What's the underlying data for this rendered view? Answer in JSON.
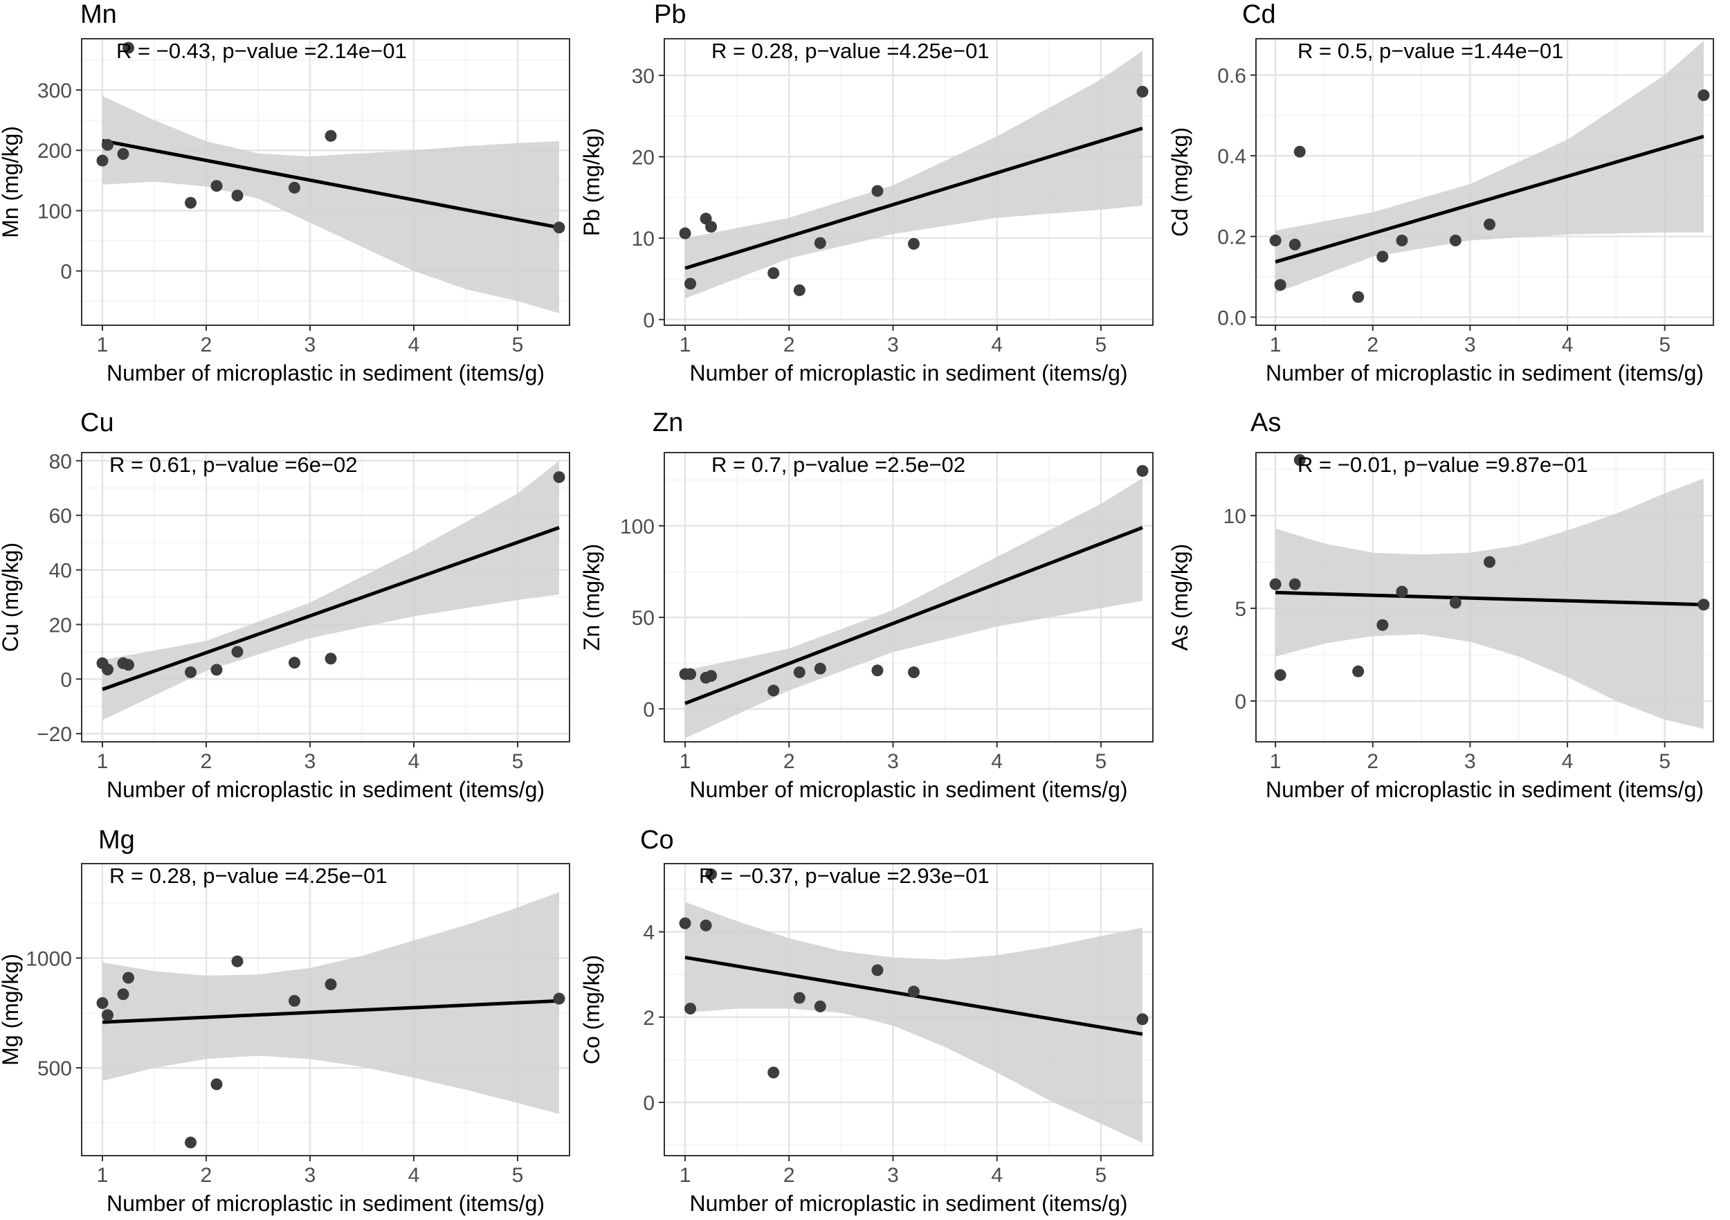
{
  "figure": {
    "x_axis_label": "Number of microplastic in sediment (items/g)"
  },
  "colors": {
    "band": "#d0d0d0",
    "grid_major": "#e4e4e4",
    "grid_minor": "#f2f2f2",
    "line": "#000000",
    "point_light": "#3d3d3d",
    "point_dark": "#0a0a0a",
    "frame": "#333333"
  },
  "chart_data": [
    {
      "type": "scatter",
      "title": "Mn",
      "ylabel": "Mn (mg/kg)",
      "xlabel": "Number of microplastic in sediment (items/g)",
      "annotation": "R = −0.43, p−value =2.14e−01",
      "xlim": [
        0.8,
        5.5
      ],
      "ylim": [
        -90,
        385
      ],
      "xticks": [
        1,
        2,
        3,
        4,
        5
      ],
      "yticks": [
        0,
        100,
        200,
        300
      ],
      "ytick_labels": [
        "0",
        "100",
        "200",
        "300"
      ],
      "grid": true,
      "points": [
        [
          1.0,
          183
        ],
        [
          1.05,
          209
        ],
        [
          1.2,
          194
        ],
        [
          1.25,
          370
        ],
        [
          1.85,
          113
        ],
        [
          2.1,
          141
        ],
        [
          2.3,
          125
        ],
        [
          2.85,
          138
        ],
        [
          3.2,
          224
        ],
        [
          5.4,
          72
        ]
      ],
      "fit": [
        [
          1.0,
          216
        ],
        [
          5.4,
          72
        ]
      ],
      "band_upper": [
        [
          1.0,
          290
        ],
        [
          1.5,
          250
        ],
        [
          2.0,
          215
        ],
        [
          2.5,
          195
        ],
        [
          3.0,
          190
        ],
        [
          3.5,
          195
        ],
        [
          4.0,
          200
        ],
        [
          4.5,
          207
        ],
        [
          5.0,
          212
        ],
        [
          5.4,
          215
        ]
      ],
      "band_lower": [
        [
          1.0,
          143
        ],
        [
          1.5,
          148
        ],
        [
          2.0,
          140
        ],
        [
          2.5,
          120
        ],
        [
          3.0,
          80
        ],
        [
          3.5,
          40
        ],
        [
          4.0,
          0
        ],
        [
          4.5,
          -30
        ],
        [
          5.0,
          -50
        ],
        [
          5.4,
          -70
        ]
      ]
    },
    {
      "type": "scatter",
      "title": "Pb",
      "ylabel": "Pb (mg/kg)",
      "xlabel": "Number of microplastic in sediment (items/g)",
      "annotation": "R = 0.28, p−value =4.25e−01",
      "xlim": [
        0.8,
        5.5
      ],
      "ylim": [
        -0.7,
        34.5
      ],
      "xticks": [
        1,
        2,
        3,
        4,
        5
      ],
      "yticks": [
        0,
        10,
        20,
        30
      ],
      "ytick_labels": [
        "0",
        "10",
        "20",
        "30"
      ],
      "grid": true,
      "points": [
        [
          1.0,
          10.6
        ],
        [
          1.05,
          4.4
        ],
        [
          1.2,
          12.4
        ],
        [
          1.25,
          11.4
        ],
        [
          1.85,
          5.7
        ],
        [
          2.1,
          3.6
        ],
        [
          2.3,
          9.4
        ],
        [
          2.85,
          15.8
        ],
        [
          3.2,
          9.3
        ],
        [
          5.4,
          28.0
        ]
      ],
      "fit": [
        [
          1.0,
          6.3
        ],
        [
          5.4,
          23.5
        ]
      ],
      "band_upper": [
        [
          1.0,
          10.0
        ],
        [
          2.0,
          12.5
        ],
        [
          3.0,
          16.5
        ],
        [
          4.0,
          22.5
        ],
        [
          5.0,
          29.5
        ],
        [
          5.4,
          33.0
        ]
      ],
      "band_lower": [
        [
          1.0,
          2.6
        ],
        [
          2.0,
          7.5
        ],
        [
          3.0,
          10.5
        ],
        [
          4.0,
          12.5
        ],
        [
          5.0,
          13.5
        ],
        [
          5.4,
          14.0
        ]
      ]
    },
    {
      "type": "scatter",
      "title": "Cd",
      "ylabel": "Cd (mg/kg)",
      "xlabel": "Number of microplastic in sediment (items/g)",
      "annotation": "R = 0.5, p−value =1.44e−01",
      "xlim": [
        0.8,
        5.5
      ],
      "ylim": [
        -0.02,
        0.69
      ],
      "xticks": [
        1,
        2,
        3,
        4,
        5
      ],
      "yticks": [
        0.0,
        0.2,
        0.4,
        0.6
      ],
      "ytick_labels": [
        "0.0",
        "0.2",
        "0.4",
        "0.6"
      ],
      "grid": true,
      "points": [
        [
          1.0,
          0.19
        ],
        [
          1.05,
          0.08
        ],
        [
          1.2,
          0.18
        ],
        [
          1.25,
          0.41
        ],
        [
          1.85,
          0.05
        ],
        [
          2.1,
          0.15
        ],
        [
          2.3,
          0.19
        ],
        [
          2.85,
          0.19
        ],
        [
          3.2,
          0.23
        ],
        [
          5.4,
          0.55
        ]
      ],
      "fit": [
        [
          1.0,
          0.137
        ],
        [
          5.4,
          0.448
        ]
      ],
      "band_upper": [
        [
          1.0,
          0.215
        ],
        [
          2.0,
          0.26
        ],
        [
          3.0,
          0.33
        ],
        [
          4.0,
          0.44
        ],
        [
          5.0,
          0.6
        ],
        [
          5.4,
          0.685
        ]
      ],
      "band_lower": [
        [
          1.0,
          0.06
        ],
        [
          2.0,
          0.15
        ],
        [
          3.0,
          0.19
        ],
        [
          4.0,
          0.205
        ],
        [
          5.0,
          0.21
        ],
        [
          5.4,
          0.21
        ]
      ]
    },
    {
      "type": "scatter",
      "title": "Cu",
      "ylabel": "Cu (mg/kg)",
      "xlabel": "Number of microplastic in sediment (items/g)",
      "annotation": "R = 0.61, p−value =6e−02",
      "xlim": [
        0.8,
        5.5
      ],
      "ylim": [
        -23,
        83
      ],
      "xticks": [
        1,
        2,
        3,
        4,
        5
      ],
      "yticks": [
        -20,
        0,
        20,
        40,
        60,
        80
      ],
      "ytick_labels": [
        "−20",
        "0",
        "20",
        "40",
        "60",
        "80"
      ],
      "grid": true,
      "points": [
        [
          1.0,
          5.8
        ],
        [
          1.05,
          3.5
        ],
        [
          1.2,
          5.8
        ],
        [
          1.25,
          5.2
        ],
        [
          1.85,
          2.5
        ],
        [
          2.1,
          3.4
        ],
        [
          2.3,
          10.0
        ],
        [
          2.85,
          6.0
        ],
        [
          3.2,
          7.5
        ],
        [
          5.4,
          74.0
        ]
      ],
      "fit": [
        [
          1.0,
          -3.8
        ],
        [
          5.4,
          55.5
        ]
      ],
      "band_upper": [
        [
          1.0,
          7.0
        ],
        [
          2.0,
          14.0
        ],
        [
          3.0,
          28.0
        ],
        [
          4.0,
          47.0
        ],
        [
          5.0,
          68.0
        ],
        [
          5.4,
          80.0
        ]
      ],
      "band_lower": [
        [
          1.0,
          -15.0
        ],
        [
          2.0,
          3.0
        ],
        [
          3.0,
          15.0
        ],
        [
          4.0,
          23.0
        ],
        [
          5.0,
          29.0
        ],
        [
          5.4,
          31.0
        ]
      ]
    },
    {
      "type": "scatter",
      "title": "Zn",
      "ylabel": "Zn (mg/kg)",
      "xlabel": "Number of microplastic in sediment (items/g)",
      "annotation": "R = 0.7, p−value =2.5e−02",
      "xlim": [
        0.8,
        5.5
      ],
      "ylim": [
        -18,
        140
      ],
      "xticks": [
        1,
        2,
        3,
        4,
        5
      ],
      "yticks": [
        0,
        50,
        100
      ],
      "ytick_labels": [
        "0",
        "50",
        "100"
      ],
      "grid": true,
      "points": [
        [
          1.0,
          19
        ],
        [
          1.05,
          19
        ],
        [
          1.2,
          17
        ],
        [
          1.25,
          18
        ],
        [
          1.85,
          10
        ],
        [
          2.1,
          20
        ],
        [
          2.3,
          22
        ],
        [
          2.85,
          21
        ],
        [
          3.2,
          20
        ],
        [
          5.4,
          130
        ]
      ],
      "fit": [
        [
          1.0,
          3.0
        ],
        [
          5.4,
          99.0
        ]
      ],
      "band_upper": [
        [
          1.0,
          21
        ],
        [
          2.0,
          33
        ],
        [
          3.0,
          54
        ],
        [
          4.0,
          83
        ],
        [
          5.0,
          112
        ],
        [
          5.4,
          126
        ]
      ],
      "band_lower": [
        [
          1.0,
          -16
        ],
        [
          2.0,
          10
        ],
        [
          3.0,
          31
        ],
        [
          4.0,
          45
        ],
        [
          5.0,
          55
        ],
        [
          5.4,
          59
        ]
      ]
    },
    {
      "type": "scatter",
      "title": "As",
      "ylabel": "As (mg/kg)",
      "xlabel": "Number of microplastic in sediment (items/g)",
      "annotation": "R = −0.01, p−value =9.87e−01",
      "xlim": [
        0.8,
        5.5
      ],
      "ylim": [
        -2.2,
        13.4
      ],
      "xticks": [
        1,
        2,
        3,
        4,
        5
      ],
      "yticks": [
        0,
        5,
        10
      ],
      "ytick_labels": [
        "0",
        "5",
        "10"
      ],
      "grid": true,
      "points": [
        [
          1.0,
          6.3
        ],
        [
          1.05,
          1.4
        ],
        [
          1.2,
          6.3
        ],
        [
          1.25,
          13.0
        ],
        [
          1.85,
          1.6
        ],
        [
          2.1,
          4.1
        ],
        [
          2.3,
          5.9
        ],
        [
          2.85,
          5.3
        ],
        [
          3.2,
          7.5
        ],
        [
          5.4,
          5.2
        ]
      ],
      "fit": [
        [
          1.0,
          5.85
        ],
        [
          5.4,
          5.2
        ]
      ],
      "band_upper": [
        [
          1.0,
          9.3
        ],
        [
          1.5,
          8.5
        ],
        [
          2.0,
          8.0
        ],
        [
          2.5,
          7.9
        ],
        [
          3.0,
          8.0
        ],
        [
          3.5,
          8.4
        ],
        [
          4.0,
          9.2
        ],
        [
          4.5,
          10.1
        ],
        [
          5.0,
          11.2
        ],
        [
          5.4,
          12.0
        ]
      ],
      "band_lower": [
        [
          1.0,
          2.4
        ],
        [
          1.5,
          3.1
        ],
        [
          2.0,
          3.5
        ],
        [
          2.5,
          3.6
        ],
        [
          3.0,
          3.2
        ],
        [
          3.5,
          2.4
        ],
        [
          4.0,
          1.3
        ],
        [
          4.5,
          0.0
        ],
        [
          5.0,
          -1.0
        ],
        [
          5.4,
          -1.5
        ]
      ]
    },
    {
      "type": "scatter",
      "title": "Mg",
      "ylabel": "Mg (mg/kg)",
      "xlabel": "Number of microplastic in sediment (items/g)",
      "annotation": "R = 0.28, p−value =4.25e−01",
      "xlim": [
        0.8,
        5.5
      ],
      "ylim": [
        100,
        1430
      ],
      "xticks": [
        1,
        2,
        3,
        4,
        5
      ],
      "yticks": [
        500,
        1000
      ],
      "ytick_labels": [
        "500",
        "1000"
      ],
      "grid": true,
      "points": [
        [
          1.0,
          795
        ],
        [
          1.05,
          740
        ],
        [
          1.2,
          835
        ],
        [
          1.25,
          910
        ],
        [
          1.85,
          160
        ],
        [
          2.1,
          425
        ],
        [
          2.3,
          985
        ],
        [
          2.85,
          805
        ],
        [
          3.2,
          880
        ],
        [
          5.4,
          815
        ]
      ],
      "fit": [
        [
          1.0,
          708
        ],
        [
          5.4,
          805
        ]
      ],
      "band_upper": [
        [
          1.0,
          980
        ],
        [
          1.5,
          940
        ],
        [
          2.0,
          920
        ],
        [
          2.5,
          925
        ],
        [
          3.0,
          955
        ],
        [
          3.5,
          1010
        ],
        [
          4.0,
          1080
        ],
        [
          4.5,
          1150
        ],
        [
          5.0,
          1230
        ],
        [
          5.4,
          1300
        ]
      ],
      "band_lower": [
        [
          1.0,
          440
        ],
        [
          1.5,
          500
        ],
        [
          2.0,
          540
        ],
        [
          2.5,
          555
        ],
        [
          3.0,
          540
        ],
        [
          3.5,
          505
        ],
        [
          4.0,
          455
        ],
        [
          4.5,
          400
        ],
        [
          5.0,
          340
        ],
        [
          5.4,
          290
        ]
      ]
    },
    {
      "type": "scatter",
      "title": "Co",
      "ylabel": "Co (mg/kg)",
      "xlabel": "Number of microplastic in sediment (items/g)",
      "annotation": "R = −0.37, p−value =2.93e−01",
      "xlim": [
        0.8,
        5.5
      ],
      "ylim": [
        -1.25,
        5.6
      ],
      "xticks": [
        1,
        2,
        3,
        4,
        5
      ],
      "yticks": [
        0,
        2,
        4
      ],
      "ytick_labels": [
        "0",
        "2",
        "4"
      ],
      "grid": true,
      "points": [
        [
          1.0,
          4.2
        ],
        [
          1.05,
          2.2
        ],
        [
          1.2,
          4.15
        ],
        [
          1.25,
          5.35
        ],
        [
          1.85,
          0.7
        ],
        [
          2.1,
          2.45
        ],
        [
          2.3,
          2.25
        ],
        [
          2.85,
          3.1
        ],
        [
          3.2,
          2.6
        ],
        [
          5.4,
          1.95
        ]
      ],
      "fit": [
        [
          1.0,
          3.4
        ],
        [
          5.4,
          1.6
        ]
      ],
      "band_upper": [
        [
          1.0,
          4.7
        ],
        [
          1.5,
          4.25
        ],
        [
          2.0,
          3.85
        ],
        [
          2.5,
          3.55
        ],
        [
          3.0,
          3.4
        ],
        [
          3.5,
          3.35
        ],
        [
          4.0,
          3.45
        ],
        [
          4.5,
          3.65
        ],
        [
          5.0,
          3.9
        ],
        [
          5.4,
          4.1
        ]
      ],
      "band_lower": [
        [
          1.0,
          2.1
        ],
        [
          1.5,
          2.2
        ],
        [
          2.0,
          2.2
        ],
        [
          2.5,
          2.1
        ],
        [
          3.0,
          1.8
        ],
        [
          3.5,
          1.3
        ],
        [
          4.0,
          0.7
        ],
        [
          4.5,
          0.05
        ],
        [
          5.0,
          -0.5
        ],
        [
          5.4,
          -0.95
        ]
      ]
    }
  ]
}
